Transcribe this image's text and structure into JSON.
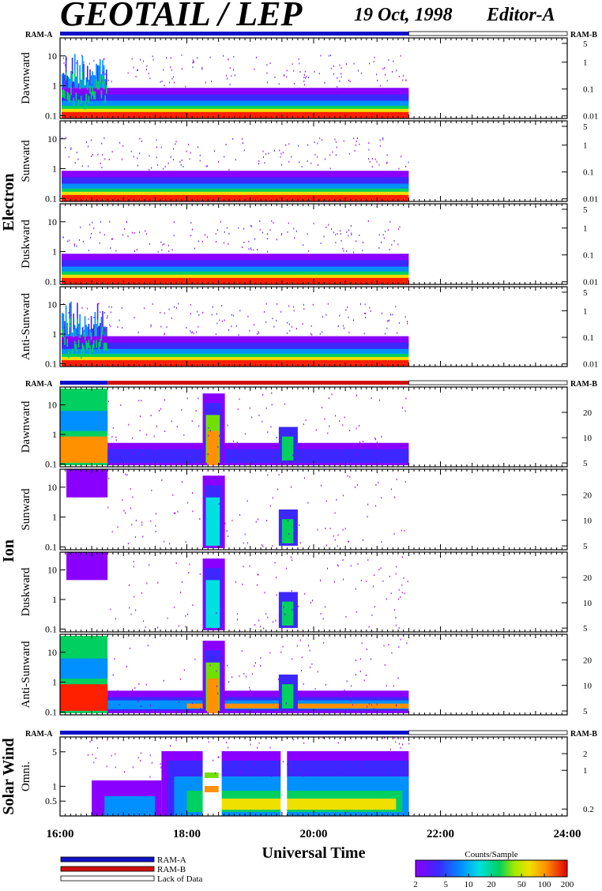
{
  "header": {
    "title": "GEOTAIL / LEP",
    "date": "19 Oct, 1998",
    "editor": "Editor-A"
  },
  "ram_labels": {
    "a": "RAM-A",
    "b": "RAM-B"
  },
  "colors": {
    "ram_a": "#1010c8",
    "ram_b": "#d01010",
    "lack": "#ffffff",
    "spectrum": [
      "#8a00ff",
      "#3c28ff",
      "#0090ff",
      "#00e0e0",
      "#00d060",
      "#70e000",
      "#f0e000",
      "#ff9000",
      "#ff2000",
      "#e00000"
    ]
  },
  "chart_data": {
    "type": "heatmap",
    "xlabel": "Universal Time",
    "x_ticks": [
      "16:00",
      "18:00",
      "20:00",
      "22:00",
      "24:00"
    ],
    "x_range_hours": [
      16,
      24
    ],
    "data_end_hour": 21.5,
    "groups": [
      {
        "name": "Electron",
        "status_bar": [
          {
            "from": 16,
            "to": 21.5,
            "mode": "RAM-A"
          },
          {
            "from": 21.5,
            "to": 24,
            "mode": "Lack of Data"
          }
        ],
        "panels": [
          {
            "name": "Dawnward",
            "y_ticks": [
              "10",
              "1",
              "0.1"
            ],
            "y_values": [
              10,
              1,
              0.1
            ],
            "y_range": [
              0.08,
              40
            ],
            "right_ticks": [
              "5",
              "1",
              "0.1",
              "0.01"
            ],
            "right_values": [
              5,
              1,
              0.1,
              0.01
            ],
            "right_range": [
              0.008,
              8
            ]
          },
          {
            "name": "Sunward",
            "y_ticks": [
              "10",
              "1",
              "0.1"
            ],
            "y_values": [
              10,
              1,
              0.1
            ],
            "y_range": [
              0.08,
              40
            ],
            "right_ticks": [
              "5",
              "1",
              "0.1",
              "0.01"
            ],
            "right_values": [
              5,
              1,
              0.1,
              0.01
            ],
            "right_range": [
              0.008,
              8
            ]
          },
          {
            "name": "Duskward",
            "y_ticks": [
              "10",
              "1",
              "0.1"
            ],
            "y_values": [
              10,
              1,
              0.1
            ],
            "y_range": [
              0.08,
              40
            ],
            "right_ticks": [
              "5",
              "1",
              "0.1",
              "0.01"
            ],
            "right_values": [
              5,
              1,
              0.1,
              0.01
            ],
            "right_range": [
              0.008,
              8
            ]
          },
          {
            "name": "Anti-Sunward",
            "y_ticks": [
              "10",
              "1",
              "0.1"
            ],
            "y_values": [
              10,
              1,
              0.1
            ],
            "y_range": [
              0.08,
              40
            ],
            "right_ticks": [
              "5",
              "1",
              "0.1",
              "0.01"
            ],
            "right_values": [
              5,
              1,
              0.1,
              0.01
            ],
            "right_range": [
              0.008,
              8
            ]
          }
        ]
      },
      {
        "name": "Ion",
        "status_bar": [
          {
            "from": 16,
            "to": 16.75,
            "mode": "RAM-A"
          },
          {
            "from": 16.75,
            "to": 21.5,
            "mode": "RAM-B"
          },
          {
            "from": 21.5,
            "to": 24,
            "mode": "Lack of Data"
          }
        ],
        "panels": [
          {
            "name": "Dawnward",
            "y_ticks": [
              "10",
              "1",
              "0.1"
            ],
            "y_values": [
              10,
              1,
              0.1
            ],
            "y_range": [
              0.08,
              40
            ],
            "right_ticks": [
              "20",
              "10",
              "5"
            ],
            "right_values": [
              20,
              10,
              5
            ],
            "right_range": [
              4.5,
              40
            ]
          },
          {
            "name": "Sunward",
            "y_ticks": [
              "10",
              "1",
              "0.1"
            ],
            "y_values": [
              10,
              1,
              0.1
            ],
            "y_range": [
              0.08,
              40
            ],
            "right_ticks": [
              "20",
              "10",
              "5"
            ],
            "right_values": [
              20,
              10,
              5
            ],
            "right_range": [
              4.5,
              40
            ]
          },
          {
            "name": "Duskward",
            "y_ticks": [
              "10",
              "1",
              "0.1"
            ],
            "y_values": [
              10,
              1,
              0.1
            ],
            "y_range": [
              0.08,
              40
            ],
            "right_ticks": [
              "20",
              "10",
              "5"
            ],
            "right_values": [
              20,
              10,
              5
            ],
            "right_range": [
              4.5,
              40
            ]
          },
          {
            "name": "Anti-Sunward",
            "y_ticks": [
              "10",
              "1",
              "0.1"
            ],
            "y_values": [
              10,
              1,
              0.1
            ],
            "y_range": [
              0.08,
              40
            ],
            "right_ticks": [
              "20",
              "10",
              "5"
            ],
            "right_values": [
              20,
              10,
              5
            ],
            "right_range": [
              4.5,
              40
            ]
          }
        ]
      },
      {
        "name": "Solar Wind",
        "status_bar": [
          {
            "from": 16,
            "to": 21.5,
            "mode": "RAM-A"
          },
          {
            "from": 21.5,
            "to": 24,
            "mode": "Lack of Data"
          }
        ],
        "panels": [
          {
            "name": "Omni.",
            "y_ticks": [
              "5",
              "1",
              "0.5"
            ],
            "y_values": [
              5,
              1,
              0.5
            ],
            "y_range": [
              0.25,
              10
            ],
            "right_ticks": [
              "2",
              "1",
              "0.2"
            ],
            "right_values": [
              2,
              1,
              0.2
            ],
            "right_range": [
              0.15,
              4
            ]
          }
        ]
      }
    ],
    "legend": {
      "entries": [
        {
          "label": "RAM-A",
          "color": "#1010c8"
        },
        {
          "label": "RAM-B",
          "color": "#d01010"
        },
        {
          "label": "Lack of Data",
          "color": "#ffffff"
        }
      ]
    },
    "colorbar": {
      "label": "Counts/Sample",
      "scale": "log",
      "range": [
        2,
        200
      ],
      "ticks": [
        "2",
        "5",
        "10",
        "20",
        "50",
        "100",
        "200"
      ],
      "tick_values": [
        2,
        5,
        10,
        20,
        50,
        100,
        200
      ]
    }
  }
}
